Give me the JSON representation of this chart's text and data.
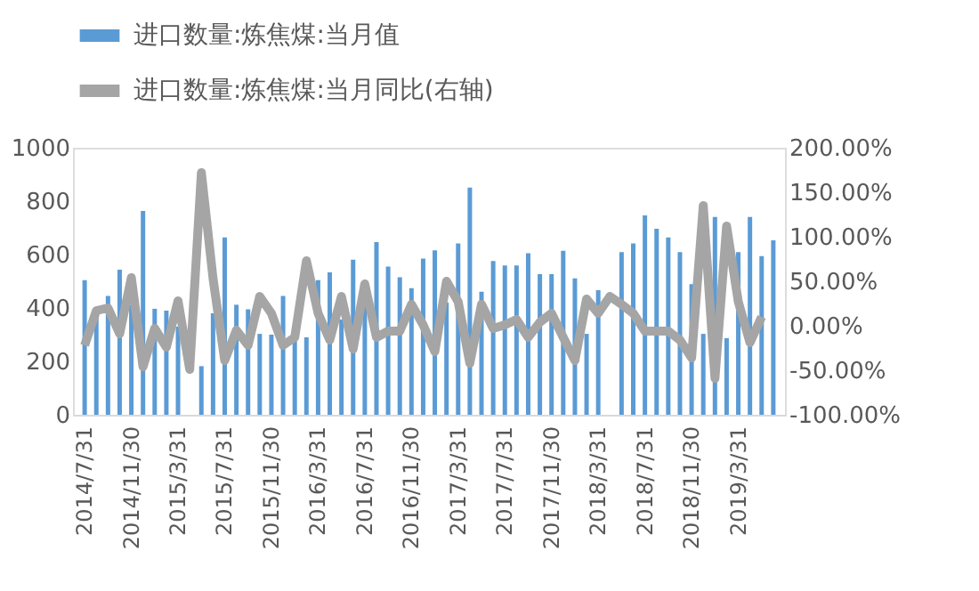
{
  "chart_data": {
    "type": "bar",
    "categories": [
      "2014/7/31",
      null,
      null,
      null,
      "2014/11/30",
      null,
      null,
      null,
      "2015/3/31",
      null,
      null,
      null,
      "2015/7/31",
      null,
      null,
      null,
      "2015/11/30",
      null,
      null,
      null,
      "2016/3/31",
      null,
      null,
      null,
      "2016/7/31",
      null,
      null,
      null,
      "2016/11/30",
      null,
      null,
      null,
      "2017/3/31",
      null,
      null,
      null,
      "2017/7/31",
      null,
      null,
      null,
      "2017/11/30",
      null,
      null,
      null,
      "2018/3/31",
      null,
      null,
      null,
      "2018/7/31",
      null,
      null,
      null,
      "2018/11/30",
      null,
      null,
      null,
      "2019/3/31",
      null,
      null,
      null
    ],
    "series": [
      {
        "name": "进口数量:炼焦煤:当月值",
        "color": "#5b9bd5",
        "values": [
          504,
          380,
          445,
          543,
          410,
          763,
          397,
          390,
          330,
          null,
          182,
          380,
          664,
          412,
          395,
          303,
          300,
          445,
          290,
          290,
          504,
          533,
          357,
          581,
          423,
          647,
          555,
          515,
          474,
          585,
          616,
          420,
          642,
          851,
          461,
          576,
          559,
          559,
          605,
          527,
          527,
          614,
          511,
          303,
          467,
          null,
          609,
          642,
          747,
          697,
          664,
          609,
          489,
          303,
          741,
          287,
          609,
          741,
          594,
          653
        ]
      },
      {
        "name": "进口数量:炼焦煤:当月同比(右轴)",
        "type": "line",
        "axis": "y2",
        "color": "#a5a5a5",
        "values": [
          -22,
          17,
          20,
          -9,
          54,
          -46,
          -3,
          -24,
          28,
          -49,
          172,
          53,
          -39,
          -5,
          -22,
          33,
          14,
          -22,
          -13,
          73,
          14,
          -16,
          33,
          -26,
          47,
          -13,
          -6,
          -6,
          24,
          1,
          -29,
          50,
          27,
          -42,
          24,
          -3,
          1,
          7,
          -13,
          4,
          14,
          -13,
          -39,
          30,
          14,
          33,
          24,
          14,
          -6,
          -6,
          -6,
          -16,
          -36,
          135,
          -59,
          112,
          27,
          -19,
          10,
          null
        ]
      }
    ],
    "ylim": [
      0,
      1000
    ],
    "yticks": [
      0,
      200,
      400,
      600,
      800,
      1000
    ],
    "y2lim": [
      -100,
      200
    ],
    "y2ticks": [
      {
        "value": -100,
        "label": "-100.00%"
      },
      {
        "value": -50,
        "label": "-50.00%"
      },
      {
        "value": 0,
        "label": "0.00%"
      },
      {
        "value": 50,
        "label": "50.00%"
      },
      {
        "value": 100,
        "label": "100.00%"
      },
      {
        "value": 150,
        "label": "150.00%"
      },
      {
        "value": 200,
        "label": "200.00%"
      }
    ],
    "grid": false,
    "legend": "top"
  }
}
